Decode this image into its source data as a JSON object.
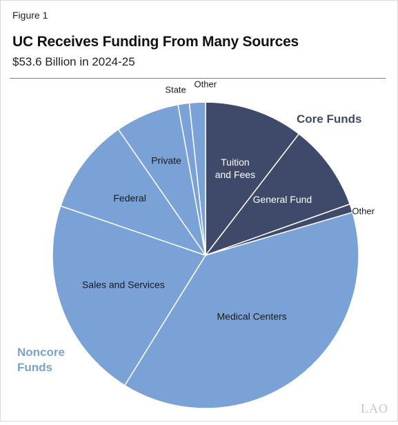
{
  "figure_label": "Figure 1",
  "chart_data": {
    "type": "pie",
    "title": "UC Receives Funding From Many Sources",
    "subtitle": "$53.6 Billion in 2024-25",
    "direction": "clockwise from 12 o'clock",
    "slices": [
      {
        "label": "Tuition\nand Fees",
        "value": 10.5,
        "group": "core",
        "color": "#3f4a6b"
      },
      {
        "label": "General Fund",
        "value": 9.2,
        "group": "core",
        "color": "#3f4a6b"
      },
      {
        "label": "Other",
        "value": 0.9,
        "group": "core",
        "color": "#3f4a6b"
      },
      {
        "label": "Medical Centers",
        "value": 38.6,
        "group": "noncore",
        "color": "#7aa2d6"
      },
      {
        "label": "Sales and Services",
        "value": 21.5,
        "group": "noncore",
        "color": "#7aa2d6"
      },
      {
        "label": "Federal",
        "value": 10.2,
        "group": "noncore",
        "color": "#7aa2d6"
      },
      {
        "label": "Private",
        "value": 6.8,
        "group": "noncore",
        "color": "#7aa2d6"
      },
      {
        "label": "State",
        "value": 1.2,
        "group": "noncore",
        "color": "#7aa2d6"
      },
      {
        "label": "Other",
        "value": 1.7,
        "group": "noncore",
        "color": "#7aa2d6"
      }
    ],
    "groups": [
      {
        "name": "Core Funds",
        "color": "#3f4a6b"
      },
      {
        "name": "Noncore\nFunds",
        "color": "#7aa2d6"
      }
    ]
  },
  "logo_text": "LAO"
}
